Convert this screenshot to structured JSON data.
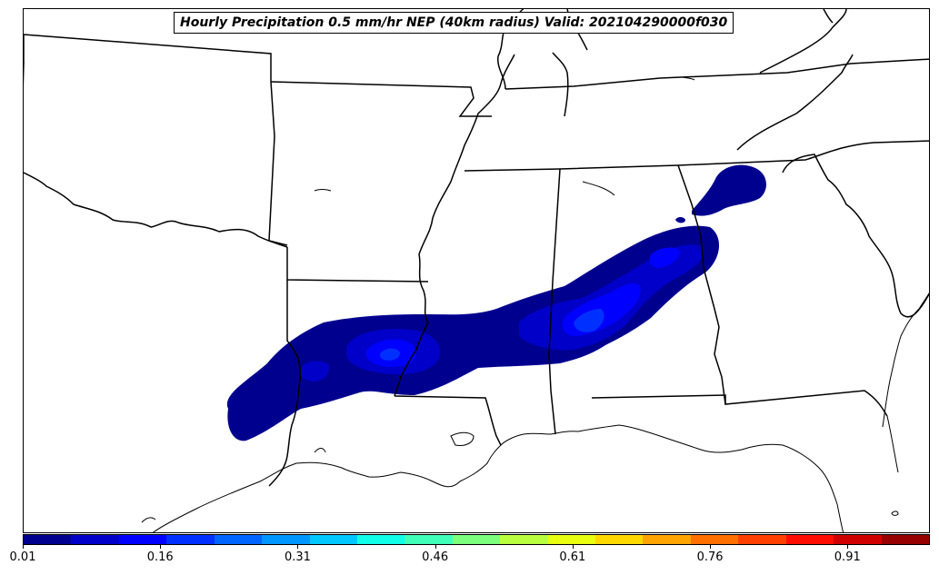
{
  "title": "Hourly Precipitation 0.5 mm/hr NEP (40km radius) Valid: 202104290000f030",
  "colorbar": {
    "ticks": [
      "0.01",
      "0.16",
      "0.31",
      "0.46",
      "0.61",
      "0.76",
      "0.91"
    ],
    "range": [
      0.01,
      1.0
    ],
    "colors": [
      "#00008f",
      "#0000c8",
      "#0000ff",
      "#0030ff",
      "#0064ff",
      "#0096ff",
      "#00c8ff",
      "#10ffe8",
      "#40ffb8",
      "#7cff7c",
      "#b8ff40",
      "#e8ff10",
      "#ffd800",
      "#ffa400",
      "#ff7000",
      "#ff4000",
      "#ff0d00",
      "#d00000",
      "#960000"
    ]
  },
  "field": {
    "variable": "Hourly Precipitation 0.5 mm/hr NEP",
    "radius": "40km",
    "valid": "202104290000f030",
    "levels": [
      {
        "level": "0.01-0.06",
        "color": "#00008f"
      },
      {
        "level": "0.06-0.11",
        "color": "#0000c8"
      },
      {
        "level": "0.11-0.16",
        "color": "#0000ff"
      },
      {
        "level": "0.16-0.21",
        "color": "#0030ff"
      }
    ]
  }
}
